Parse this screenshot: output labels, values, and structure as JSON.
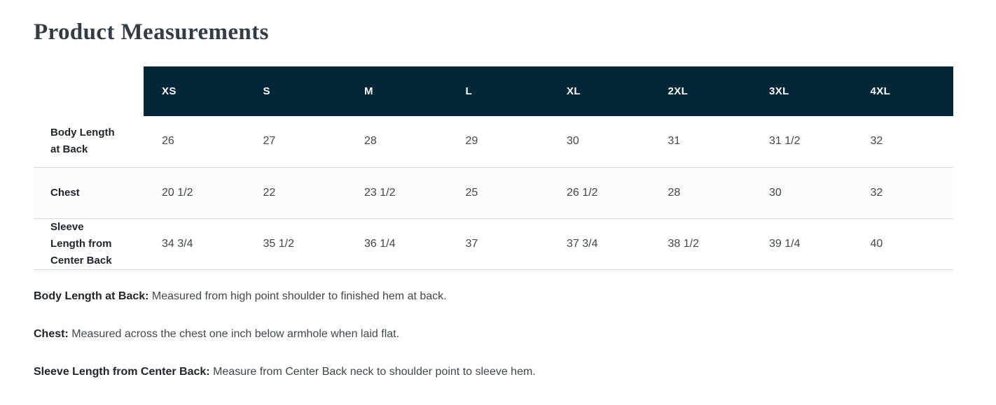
{
  "page_title": "Product Measurements",
  "colors": {
    "header_bg": "#032639",
    "header_text": "#ffffff",
    "alt_row_bg": "#fbfbfb",
    "row_border": "#d8d8d8",
    "title_text": "#323c46",
    "label_text": "#1f242a",
    "value_text": "#40474e"
  },
  "table": {
    "columns": [
      "XS",
      "S",
      "M",
      "L",
      "XL",
      "2XL",
      "3XL",
      "4XL"
    ],
    "rows": [
      {
        "label": "Body Length at Back",
        "values": [
          "26",
          "27",
          "28",
          "29",
          "30",
          "31",
          "31 1/2",
          "32"
        ]
      },
      {
        "label": "Chest",
        "values": [
          "20 1/2",
          "22",
          "23 1/2",
          "25",
          "26 1/2",
          "28",
          "30",
          "32"
        ]
      },
      {
        "label": "Sleeve Length from Center Back",
        "values": [
          "34 3/4",
          "35 1/2",
          "36 1/4",
          "37",
          "37 3/4",
          "38 1/2",
          "39 1/4",
          "40"
        ]
      }
    ]
  },
  "notes": [
    {
      "term": "Body Length at Back:",
      "definition": "Measured from high point shoulder to finished hem at back."
    },
    {
      "term": "Chest:",
      "definition": "Measured across the chest one inch below armhole when laid flat."
    },
    {
      "term": "Sleeve Length from Center Back:",
      "definition": "Measure from Center Back neck to shoulder point to sleeve hem."
    }
  ],
  "chart_data": {
    "type": "table",
    "title": "Product Measurements",
    "columns": [
      "XS",
      "S",
      "M",
      "L",
      "XL",
      "2XL",
      "3XL",
      "4XL"
    ],
    "rows": [
      {
        "name": "Body Length at Back",
        "values": [
          26,
          27,
          28,
          29,
          30,
          31,
          31.5,
          32
        ]
      },
      {
        "name": "Chest",
        "values": [
          20.5,
          22,
          23.5,
          25,
          26.5,
          28,
          30,
          32
        ]
      },
      {
        "name": "Sleeve Length from Center Back",
        "values": [
          34.75,
          35.5,
          36.25,
          37,
          37.75,
          38.5,
          39.25,
          40
        ]
      }
    ]
  }
}
